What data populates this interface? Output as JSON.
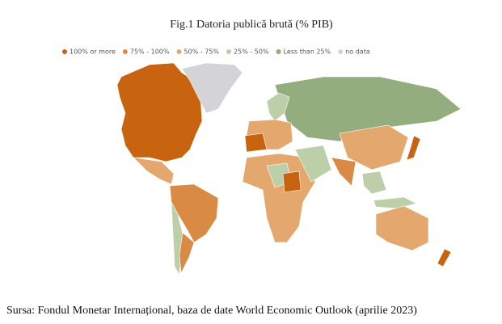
{
  "title": "Fig.1 Datoria publică brută (% PIB)",
  "legend": [
    {
      "label": "100% or more",
      "color": "#c8640f"
    },
    {
      "label": "75% - 100%",
      "color": "#d98a45"
    },
    {
      "label": "50% - 75%",
      "color": "#e4a86e"
    },
    {
      "label": "25% - 50%",
      "color": "#bccfa9"
    },
    {
      "label": "Less than 25%",
      "color": "#93ad7e"
    },
    {
      "label": "no data",
      "color": "#d4d4d8"
    }
  ],
  "source": "Sursa: Fondul Monetar Internațional, baza de date World Economic Outlook (aprilie 2023)"
}
